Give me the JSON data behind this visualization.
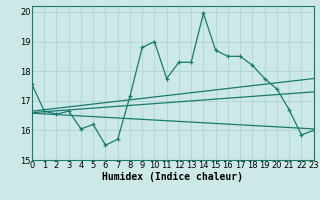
{
  "xlabel": "Humidex (Indice chaleur)",
  "ylabel": "",
  "background_color": "#cce9e7",
  "grid_color": "#afd4d2",
  "line_color": "#1a7a6e",
  "xlim": [
    0,
    23
  ],
  "ylim": [
    15,
    20.2
  ],
  "yticks": [
    15,
    16,
    17,
    18,
    19,
    20
  ],
  "xticks": [
    0,
    1,
    2,
    3,
    4,
    5,
    6,
    7,
    8,
    9,
    10,
    11,
    12,
    13,
    14,
    15,
    16,
    17,
    18,
    19,
    20,
    21,
    22,
    23
  ],
  "main_x": [
    0,
    1,
    2,
    3,
    4,
    5,
    6,
    7,
    8,
    9,
    10,
    11,
    12,
    13,
    14,
    15,
    16,
    17,
    18,
    19,
    20,
    21,
    22,
    23
  ],
  "main_y": [
    17.55,
    16.65,
    16.55,
    16.65,
    16.05,
    16.2,
    15.5,
    15.7,
    17.15,
    18.8,
    19.0,
    17.75,
    18.3,
    18.3,
    19.95,
    18.7,
    18.5,
    18.5,
    18.2,
    17.75,
    17.4,
    16.7,
    15.85,
    16.0
  ],
  "trend1_x": [
    0,
    23
  ],
  "trend1_y": [
    16.65,
    17.75
  ],
  "trend2_x": [
    0,
    23
  ],
  "trend2_y": [
    16.6,
    17.3
  ],
  "trend3_x": [
    0,
    23
  ],
  "trend3_y": [
    16.58,
    16.05
  ],
  "font_size": 6.0,
  "xlabel_fontsize": 7.0
}
